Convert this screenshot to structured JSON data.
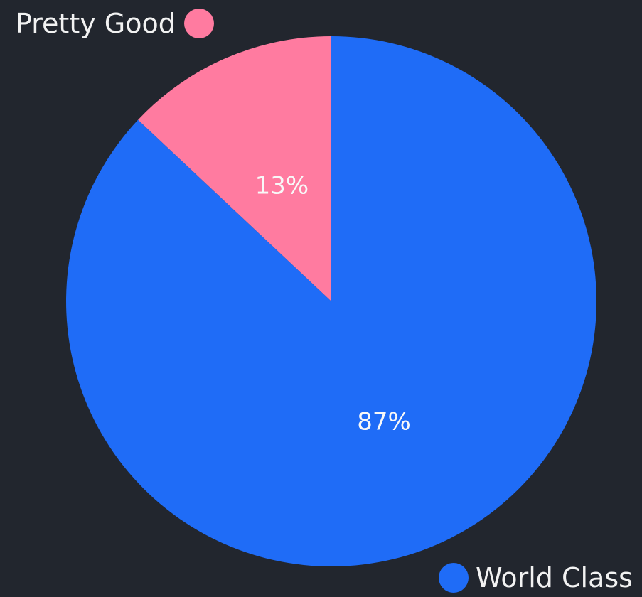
{
  "chart_data": {
    "type": "pie",
    "categories": [
      "Pretty Good",
      "World Class"
    ],
    "values": [
      13,
      87
    ],
    "labels": [
      "13%",
      "87%"
    ],
    "colors": [
      "#ff7ba0",
      "#1f6cf7"
    ],
    "title": "",
    "legend_position": "split (top-left and bottom-right)",
    "start_angle_degrees": -90,
    "direction": "counterclockwise"
  },
  "legend": {
    "pretty_good": {
      "label": "Pretty Good",
      "color": "#ff7ba0"
    },
    "world_class": {
      "label": "World Class",
      "color": "#1f6cf7"
    }
  }
}
